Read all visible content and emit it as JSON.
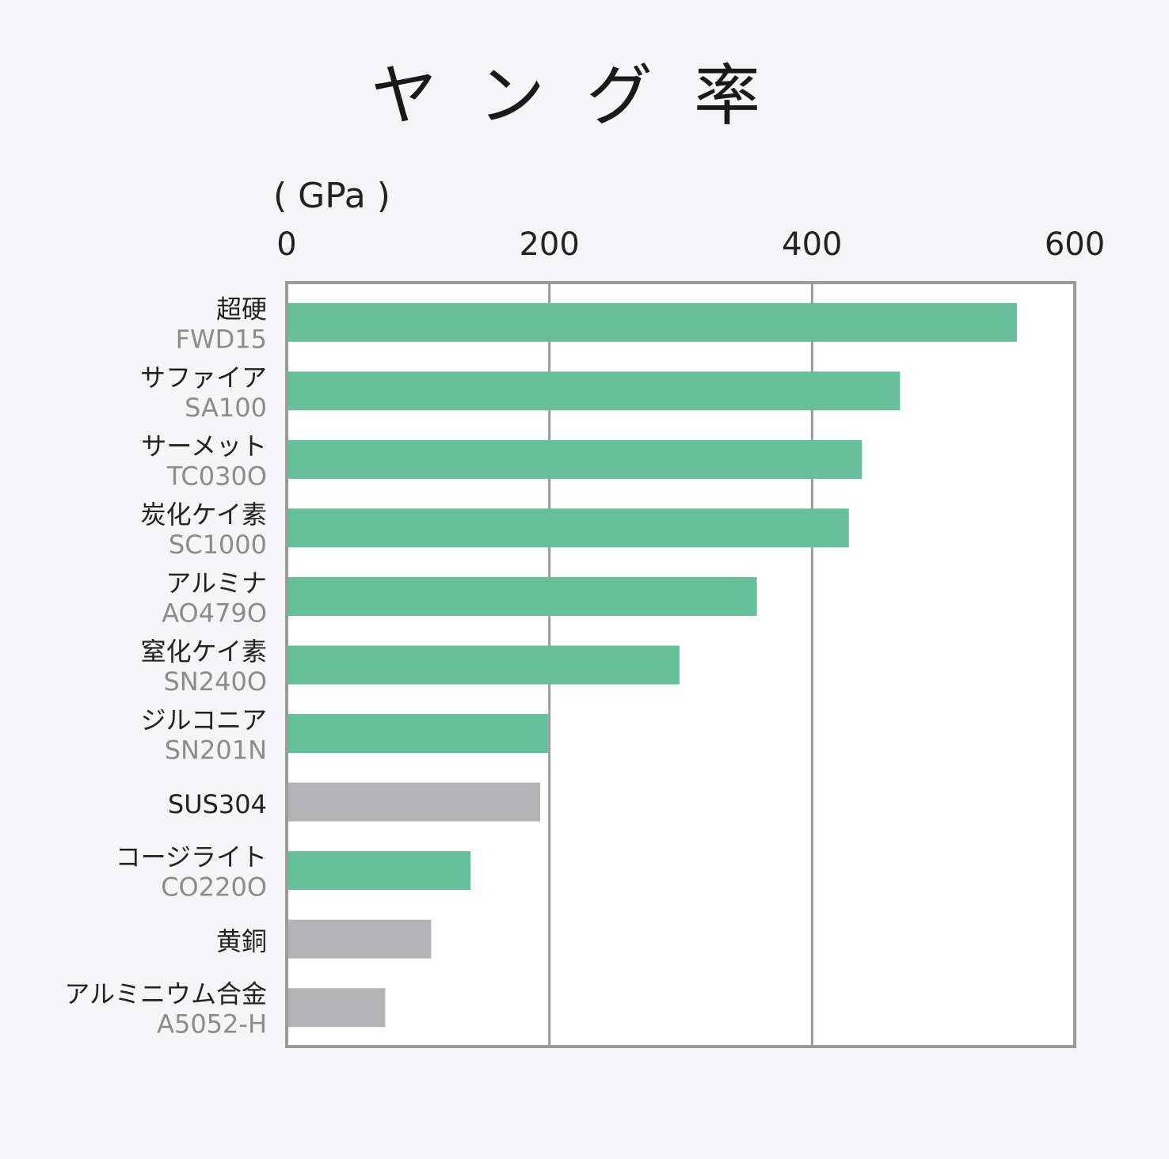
{
  "chart_data": {
    "type": "bar",
    "orientation": "horizontal",
    "title": "ヤング率",
    "unit_label": "( GPa )",
    "xlim": [
      0,
      600
    ],
    "ticks": [
      "0",
      "200",
      "400",
      "600"
    ],
    "grid": true,
    "categories": [
      {
        "name": "超硬",
        "code": "FWD15",
        "value": 556,
        "group": "product"
      },
      {
        "name": "サファイア",
        "code": "SA100",
        "value": 467,
        "group": "product"
      },
      {
        "name": "サーメット",
        "code": "TC030O",
        "value": 438,
        "group": "product"
      },
      {
        "name": "炭化ケイ素",
        "code": "SC1000",
        "value": 428,
        "group": "product"
      },
      {
        "name": "アルミナ",
        "code": "AO479O",
        "value": 358,
        "group": "product"
      },
      {
        "name": "窒化ケイ素",
        "code": "SN240O",
        "value": 299,
        "group": "product"
      },
      {
        "name": "ジルコニア",
        "code": "SN201N",
        "value": 199,
        "group": "product"
      },
      {
        "name": "SUS304",
        "code": "",
        "value": 193,
        "group": "reference"
      },
      {
        "name": "コージライト",
        "code": "CO220O",
        "value": 140,
        "group": "product"
      },
      {
        "name": "黄銅",
        "code": "",
        "value": 110,
        "group": "reference"
      },
      {
        "name": "アルミニウム合金",
        "code": "A5052-H",
        "value": 75,
        "group": "reference"
      }
    ],
    "colors": {
      "product": "#66bf9b",
      "reference": "#b4b4b6",
      "frame": "#9b9b9b"
    }
  }
}
